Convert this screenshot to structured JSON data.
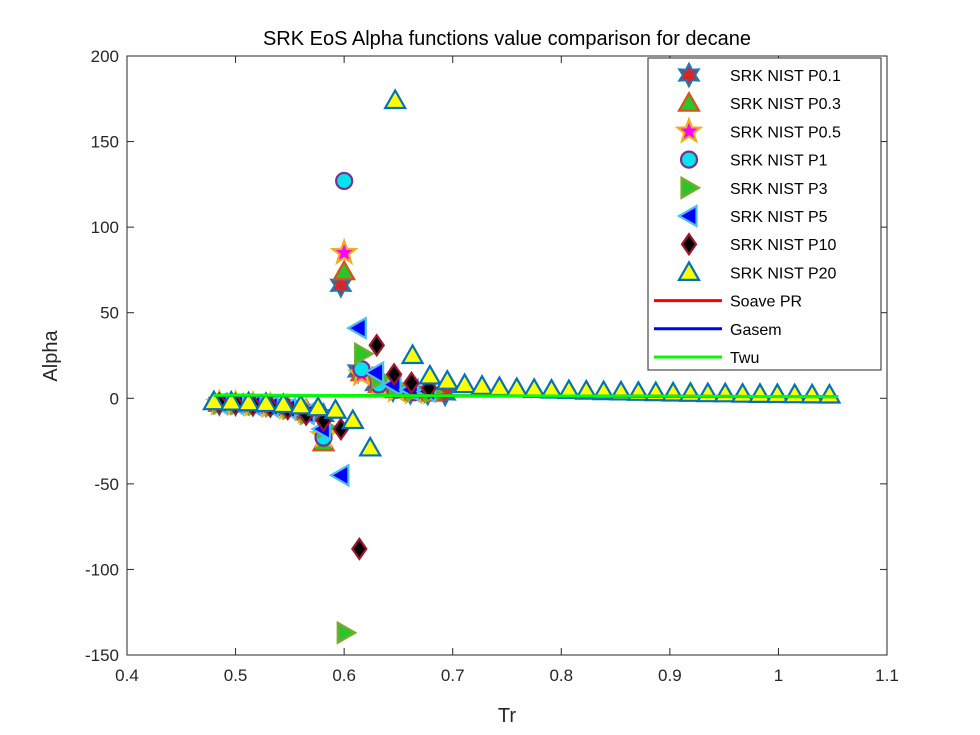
{
  "chart_data": {
    "type": "scatter",
    "title": "SRK EoS Alpha functions value comparison for decane",
    "xlabel": "Tr",
    "ylabel": "Alpha",
    "xlim": [
      0.4,
      1.1
    ],
    "ylim": [
      -150,
      200
    ],
    "xticks": [
      "0.4",
      "0.5",
      "0.6",
      "0.7",
      "0.8",
      "0.9",
      "1",
      "1.1"
    ],
    "yticks": [
      "-150",
      "-100",
      "-50",
      "0",
      "50",
      "100",
      "150",
      "200"
    ],
    "legend_position": "top-right",
    "marker_series": [
      {
        "name": "SRK NIST P0.1",
        "marker": "hexagram",
        "face": "#d62728",
        "edge": "#1f77b4",
        "points": [
          [
            0.485,
            -3
          ],
          [
            0.5,
            -3.2
          ],
          [
            0.516,
            -3.5
          ],
          [
            0.532,
            -4
          ],
          [
            0.548,
            -5
          ],
          [
            0.565,
            -7
          ],
          [
            0.581,
            -10
          ],
          [
            0.597,
            66
          ],
          [
            0.613,
            16
          ],
          [
            0.629,
            8
          ],
          [
            0.645,
            5
          ],
          [
            0.661,
            3.5
          ],
          [
            0.677,
            3
          ],
          [
            0.693,
            2.5
          ]
        ]
      },
      {
        "name": "SRK NIST P0.3",
        "marker": "triangle-up",
        "face": "#2bc42b",
        "edge": "#d95319",
        "points": [
          [
            0.485,
            -3
          ],
          [
            0.5,
            -3.3
          ],
          [
            0.516,
            -3.7
          ],
          [
            0.532,
            -4.3
          ],
          [
            0.548,
            -5.5
          ],
          [
            0.565,
            -8
          ],
          [
            0.581,
            -26
          ],
          [
            0.6,
            74
          ],
          [
            0.616,
            15
          ],
          [
            0.632,
            8
          ],
          [
            0.648,
            5
          ],
          [
            0.664,
            3.5
          ],
          [
            0.68,
            3
          ]
        ]
      },
      {
        "name": "SRK NIST P0.5",
        "marker": "pentagram",
        "face": "#ff00ff",
        "edge": "#edb120",
        "points": [
          [
            0.485,
            -3
          ],
          [
            0.5,
            -3.3
          ],
          [
            0.516,
            -3.8
          ],
          [
            0.532,
            -4.4
          ],
          [
            0.548,
            -5.6
          ],
          [
            0.565,
            -8
          ],
          [
            0.581,
            -22
          ],
          [
            0.6,
            85
          ],
          [
            0.616,
            14
          ],
          [
            0.632,
            7
          ],
          [
            0.648,
            4.5
          ],
          [
            0.664,
            3.5
          ]
        ]
      },
      {
        "name": "SRK NIST P1",
        "marker": "circle",
        "face": "#00e5ee",
        "edge": "#7e2f8e",
        "points": [
          [
            0.485,
            -3
          ],
          [
            0.5,
            -3.3
          ],
          [
            0.516,
            -3.8
          ],
          [
            0.532,
            -4.5
          ],
          [
            0.548,
            -5.8
          ],
          [
            0.565,
            -9
          ],
          [
            0.581,
            -23
          ],
          [
            0.6,
            127
          ],
          [
            0.616,
            17
          ],
          [
            0.632,
            8
          ],
          [
            0.648,
            5
          ],
          [
            0.664,
            3.5
          ]
        ]
      },
      {
        "name": "SRK NIST P3",
        "marker": "triangle-right",
        "face": "#2bc42b",
        "edge": "#77ac30",
        "points": [
          [
            0.487,
            -3
          ],
          [
            0.503,
            -3.3
          ],
          [
            0.519,
            -3.8
          ],
          [
            0.535,
            -4.6
          ],
          [
            0.551,
            -6
          ],
          [
            0.567,
            -9
          ],
          [
            0.583,
            -17
          ],
          [
            0.601,
            -137
          ],
          [
            0.617,
            26
          ],
          [
            0.633,
            12
          ],
          [
            0.649,
            7
          ],
          [
            0.665,
            4.5
          ],
          [
            0.681,
            3.5
          ]
        ]
      },
      {
        "name": "SRK NIST P5",
        "marker": "triangle-left",
        "face": "#0000ff",
        "edge": "#4dbeee",
        "points": [
          [
            0.485,
            -3
          ],
          [
            0.5,
            -3.4
          ],
          [
            0.516,
            -3.9
          ],
          [
            0.532,
            -4.7
          ],
          [
            0.548,
            -6
          ],
          [
            0.565,
            -9
          ],
          [
            0.58,
            -18
          ],
          [
            0.597,
            -45
          ],
          [
            0.613,
            41
          ],
          [
            0.629,
            15
          ],
          [
            0.645,
            8
          ],
          [
            0.661,
            5
          ],
          [
            0.677,
            4
          ]
        ]
      },
      {
        "name": "SRK NIST P10",
        "marker": "diamond",
        "face": "#000000",
        "edge": "#a2142f",
        "points": [
          [
            0.485,
            -3
          ],
          [
            0.5,
            -3.4
          ],
          [
            0.516,
            -4
          ],
          [
            0.532,
            -4.8
          ],
          [
            0.548,
            -6.2
          ],
          [
            0.565,
            -9.5
          ],
          [
            0.581,
            -13
          ],
          [
            0.597,
            -18
          ],
          [
            0.614,
            -88
          ],
          [
            0.63,
            31
          ],
          [
            0.646,
            14
          ],
          [
            0.662,
            9
          ],
          [
            0.678,
            6
          ]
        ]
      },
      {
        "name": "SRK NIST P20",
        "marker": "triangle-up",
        "face": "#ffff00",
        "edge": "#0072bd",
        "points": [
          [
            0.48,
            -2
          ],
          [
            0.496,
            -2.2
          ],
          [
            0.512,
            -2.6
          ],
          [
            0.528,
            -3
          ],
          [
            0.544,
            -3.6
          ],
          [
            0.56,
            -4.4
          ],
          [
            0.576,
            -5.5
          ],
          [
            0.592,
            -7
          ],
          [
            0.608,
            -13
          ],
          [
            0.624,
            -29
          ],
          [
            0.647,
            174
          ],
          [
            0.663,
            25
          ],
          [
            0.679,
            13
          ],
          [
            0.695,
            10
          ],
          [
            0.711,
            8
          ],
          [
            0.727,
            7
          ],
          [
            0.743,
            6.3
          ],
          [
            0.759,
            5.7
          ],
          [
            0.775,
            5.2
          ],
          [
            0.791,
            4.8
          ],
          [
            0.807,
            4.5
          ],
          [
            0.823,
            4.2
          ],
          [
            0.839,
            3.9
          ],
          [
            0.855,
            3.7
          ],
          [
            0.871,
            3.5
          ],
          [
            0.887,
            3.3
          ],
          [
            0.903,
            3.1
          ],
          [
            0.919,
            2.9
          ],
          [
            0.935,
            2.7
          ],
          [
            0.951,
            2.6
          ],
          [
            0.967,
            2.4
          ],
          [
            0.983,
            2.3
          ],
          [
            0.999,
            2.2
          ],
          [
            1.015,
            2.1
          ],
          [
            1.031,
            2
          ],
          [
            1.047,
            1.9
          ]
        ]
      }
    ],
    "line_series": [
      {
        "name": "Soave PR",
        "color": "#ff0000",
        "x": [
          0.48,
          1.055
        ],
        "y": [
          1.75,
          0.97
        ]
      },
      {
        "name": "Gasem",
        "color": "#0000ff",
        "x": [
          0.48,
          1.055
        ],
        "y": [
          1.7,
          0.97
        ]
      },
      {
        "name": "Twu",
        "color": "#00ff00",
        "x": [
          0.48,
          1.055
        ],
        "y": [
          1.8,
          0.97
        ]
      }
    ]
  }
}
